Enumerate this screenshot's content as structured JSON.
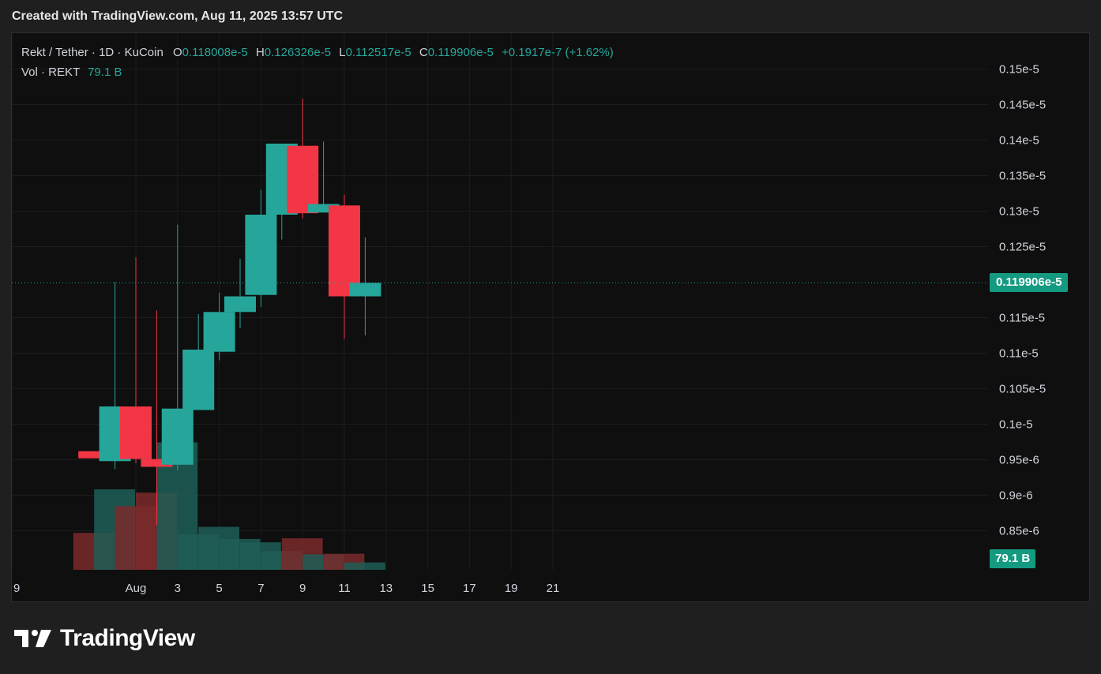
{
  "header": {
    "caption": "Created with TradingView.com, Aug 11, 2025 13:57 UTC"
  },
  "legend": {
    "symbol": "Rekt / Tether · 1D · KuCoin",
    "o_label": "O",
    "o_value": "0.118008e-5",
    "h_label": "H",
    "h_value": "0.126326e-5",
    "l_label": "L",
    "l_value": "0.112517e-5",
    "c_label": "C",
    "c_value": "0.119906e-5",
    "change": "+0.1917e-7 (+1.62%)",
    "vol_label": "Vol · REKT",
    "vol_value": "79.1 B"
  },
  "last_price_tag": "0.119906e-5",
  "volume_tag": "79.1 B",
  "footer": {
    "brand": "TradingView"
  },
  "colors": {
    "up": "#26a69a",
    "down": "#f23645",
    "up_vol": "#1e5e57",
    "down_vol": "#7a2a2c",
    "background": "#0f0f0f"
  },
  "chart_data": {
    "type": "candlestick",
    "interval": "1D",
    "y_axis": {
      "ticks": [
        "0.15e-5",
        "0.145e-5",
        "0.14e-5",
        "0.135e-5",
        "0.13e-5",
        "0.125e-5",
        "0.115e-5",
        "0.11e-5",
        "0.105e-5",
        "0.1e-5",
        "0.95e-6",
        "0.9e-6",
        "0.85e-6"
      ],
      "tick_values": [
        1.5,
        1.45,
        1.4,
        1.35,
        1.3,
        1.25,
        1.15,
        1.1,
        1.05,
        1.0,
        0.95,
        0.9,
        0.85
      ],
      "unit_note": "values below are in units of 1e-6",
      "ylim": [
        0.795,
        1.545
      ]
    },
    "x_axis": {
      "ticks": [
        "9",
        "Aug",
        "3",
        "5",
        "7",
        "9",
        "11",
        "13",
        "15",
        "17",
        "19",
        "21"
      ],
      "tick_days": [
        -22,
        0,
        2,
        4,
        6,
        8,
        10,
        12,
        14,
        16,
        18,
        20
      ]
    },
    "candles": [
      {
        "day": -2,
        "open": 0.962,
        "high": 0.962,
        "low": 0.952,
        "close": 0.952,
        "volume": 0.55
      },
      {
        "day": -1,
        "open": 0.948,
        "high": 1.2,
        "low": 0.937,
        "close": 1.025,
        "volume": 1.2
      },
      {
        "day": 0,
        "open": 1.025,
        "high": 1.235,
        "low": 0.945,
        "close": 0.951,
        "volume": 0.95
      },
      {
        "day": 1,
        "open": 0.951,
        "high": 1.16,
        "low": 0.858,
        "close": 0.94,
        "volume": 1.15
      },
      {
        "day": 2,
        "open": 0.943,
        "high": 1.281,
        "low": 0.935,
        "close": 1.022,
        "volume": 1.9
      },
      {
        "day": 3,
        "open": 1.02,
        "high": 1.155,
        "low": 1.02,
        "close": 1.105,
        "volume": 0.53
      },
      {
        "day": 4,
        "open": 1.102,
        "high": 1.185,
        "low": 1.09,
        "close": 1.158,
        "volume": 0.64
      },
      {
        "day": 5,
        "open": 1.158,
        "high": 1.233,
        "low": 1.135,
        "close": 1.18,
        "volume": 0.46
      },
      {
        "day": 6,
        "open": 1.182,
        "high": 1.33,
        "low": 1.165,
        "close": 1.295,
        "volume": 0.41
      },
      {
        "day": 7,
        "open": 1.295,
        "high": 1.395,
        "low": 1.26,
        "close": 1.395,
        "volume": 0.28
      },
      {
        "day": 8,
        "open": 1.392,
        "high": 1.458,
        "low": 1.29,
        "close": 1.297,
        "volume": 0.47
      },
      {
        "day": 9,
        "open": 1.298,
        "high": 1.398,
        "low": 1.298,
        "close": 1.31,
        "volume": 0.23
      },
      {
        "day": 10,
        "open": 1.308,
        "high": 1.323,
        "low": 1.12,
        "close": 1.18,
        "volume": 0.24
      },
      {
        "day": 11,
        "open": 1.18,
        "high": 1.263,
        "low": 1.125,
        "close": 1.199,
        "volume": 0.11
      }
    ],
    "volume_max": 2.0,
    "last_price": 1.19906,
    "grid": true
  }
}
